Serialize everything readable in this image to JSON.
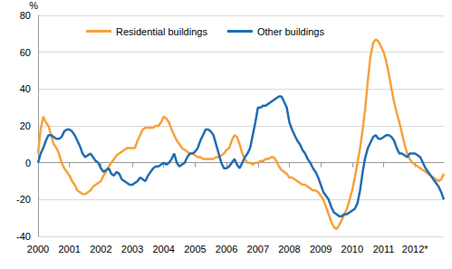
{
  "chart_data": {
    "type": "line",
    "ylabel": "%",
    "categories": [
      "2000",
      null,
      null,
      null,
      null,
      null,
      null,
      null,
      null,
      null,
      null,
      null,
      "2001",
      null,
      null,
      null,
      null,
      null,
      null,
      null,
      null,
      null,
      null,
      null,
      "2002",
      null,
      null,
      null,
      null,
      null,
      null,
      null,
      null,
      null,
      null,
      null,
      "2003",
      null,
      null,
      null,
      null,
      null,
      null,
      null,
      null,
      null,
      null,
      null,
      "2004",
      null,
      null,
      null,
      null,
      null,
      null,
      null,
      null,
      null,
      null,
      null,
      "2005",
      null,
      null,
      null,
      null,
      null,
      null,
      null,
      null,
      null,
      null,
      null,
      "2006",
      null,
      null,
      null,
      null,
      null,
      null,
      null,
      null,
      null,
      null,
      null,
      "2007",
      null,
      null,
      null,
      null,
      null,
      null,
      null,
      null,
      null,
      null,
      null,
      "2008",
      null,
      null,
      null,
      null,
      null,
      null,
      null,
      null,
      null,
      null,
      null,
      "2009",
      null,
      null,
      null,
      null,
      null,
      null,
      null,
      null,
      null,
      null,
      null,
      "2010",
      null,
      null,
      null,
      null,
      null,
      null,
      null,
      null,
      null,
      null,
      null,
      "2011",
      null,
      null,
      null,
      null,
      null,
      null,
      null,
      null,
      null,
      null,
      null,
      "2012*",
      null,
      null,
      null,
      null,
      null,
      null,
      null,
      null,
      null,
      null,
      null
    ],
    "series": [
      {
        "name": "Residential buildings",
        "color": "#f7a13a",
        "values": [
          5,
          18,
          25,
          22,
          20,
          15,
          10,
          8,
          5,
          0,
          -3,
          -5,
          -7,
          -10,
          -12,
          -15,
          -16,
          -17,
          -17,
          -16,
          -15,
          -13,
          -12,
          -11,
          -10,
          -7,
          -5,
          -2,
          0,
          2,
          4,
          5,
          6,
          7,
          8,
          8,
          8,
          8,
          12,
          15,
          18,
          19,
          19,
          19,
          19,
          20,
          20,
          22,
          25,
          24,
          22,
          18,
          15,
          12,
          10,
          8,
          7,
          6,
          5,
          5,
          4,
          3,
          3,
          2,
          2,
          2,
          2,
          2,
          3,
          3,
          4,
          5,
          7,
          8,
          12,
          15,
          14,
          10,
          5,
          2,
          0,
          0,
          -1,
          0,
          0,
          1,
          1,
          2,
          2,
          3,
          3,
          1,
          -2,
          -4,
          -5,
          -6,
          -8,
          -8,
          -9,
          -10,
          -11,
          -12,
          -12,
          -13,
          -14,
          -15,
          -15,
          -16,
          -18,
          -20,
          -24,
          -28,
          -32,
          -35,
          -36,
          -34,
          -31,
          -28,
          -25,
          -20,
          -15,
          -8,
          0,
          8,
          18,
          30,
          45,
          58,
          65,
          67,
          66,
          63,
          60,
          55,
          48,
          40,
          33,
          27,
          22,
          16,
          10,
          5,
          2,
          0,
          -1,
          -2,
          -3,
          -4,
          -5,
          -6,
          -7,
          -8,
          -9,
          -10,
          -9,
          -6
        ]
      },
      {
        "name": "Other buildings",
        "color": "#1f6db3",
        "values": [
          0,
          5,
          8,
          12,
          15,
          15,
          14,
          13,
          13,
          14,
          17,
          18,
          18,
          17,
          15,
          12,
          9,
          5,
          3,
          4,
          5,
          3,
          1,
          0,
          -3,
          -5,
          -4,
          -3,
          -6,
          -7,
          -5,
          -6,
          -9,
          -10,
          -11,
          -12,
          -12,
          -11,
          -10,
          -8,
          -9,
          -10,
          -7,
          -5,
          -3,
          -2,
          -2,
          -1,
          0,
          -1,
          0,
          2,
          5,
          0,
          -2,
          -1,
          0,
          3,
          5,
          5,
          6,
          8,
          12,
          15,
          18,
          18,
          17,
          15,
          10,
          5,
          0,
          -3,
          -3,
          -2,
          0,
          2,
          -1,
          -3,
          0,
          3,
          5,
          8,
          15,
          22,
          30,
          30,
          31,
          31,
          32,
          33,
          34,
          35,
          36,
          36,
          33,
          30,
          22,
          18,
          15,
          12,
          10,
          7,
          5,
          2,
          0,
          -3,
          -5,
          -8,
          -12,
          -16,
          -18,
          -20,
          -24,
          -27,
          -28,
          -29,
          -29,
          -28,
          -28,
          -27,
          -26,
          -25,
          -22,
          -15,
          -5,
          3,
          8,
          11,
          14,
          15,
          13,
          13,
          14,
          15,
          15,
          14,
          12,
          8,
          5,
          5,
          4,
          3,
          5,
          5,
          5,
          4,
          3,
          0,
          -3,
          -5,
          -7,
          -9,
          -11,
          -13,
          -16,
          -20
        ]
      }
    ],
    "ylim": [
      -40,
      80
    ],
    "yticks": [
      -40,
      -20,
      0,
      20,
      40,
      60,
      80
    ],
    "grid": true,
    "legend": "top"
  }
}
